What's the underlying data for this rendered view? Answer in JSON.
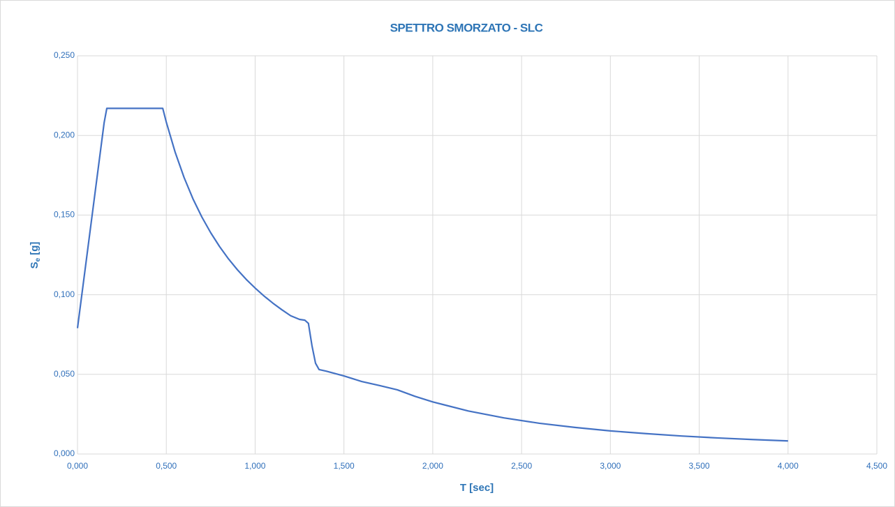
{
  "chart_data": {
    "type": "line",
    "title": "SPETTRO SMORZATO - SLC",
    "xlabel": "T [sec]",
    "ylabel": [
      "S",
      "e",
      "[g]"
    ],
    "grid": true,
    "xlim": [
      0,
      4.5
    ],
    "ylim": [
      0,
      0.25
    ],
    "xticks": [
      {
        "value": 0,
        "label": "0,000"
      },
      {
        "value": 0.5,
        "label": "0,500"
      },
      {
        "value": 1,
        "label": "1,000"
      },
      {
        "value": 1.5,
        "label": "1,500"
      },
      {
        "value": 2,
        "label": "2,000"
      },
      {
        "value": 2.5,
        "label": "2,500"
      },
      {
        "value": 3,
        "label": "3,000"
      },
      {
        "value": 3.5,
        "label": "3,500"
      },
      {
        "value": 4,
        "label": "4,000"
      },
      {
        "value": 4.5,
        "label": "4,500"
      }
    ],
    "yticks": [
      {
        "value": 0,
        "label": "0,000"
      },
      {
        "value": 0.05,
        "label": "0,050"
      },
      {
        "value": 0.1,
        "label": "0,100"
      },
      {
        "value": 0.15,
        "label": "0,150"
      },
      {
        "value": 0.2,
        "label": "0,200"
      },
      {
        "value": 0.25,
        "label": "0,250"
      }
    ],
    "series": [
      {
        "color": "#4472c4",
        "x": [
          0,
          0.05,
          0.1,
          0.15,
          0.165,
          0.2,
          0.3,
          0.4,
          0.48,
          0.5,
          0.55,
          0.6,
          0.65,
          0.7,
          0.75,
          0.8,
          0.85,
          0.9,
          0.95,
          1.0,
          1.05,
          1.1,
          1.15,
          1.2,
          1.25,
          1.28,
          1.3,
          1.32,
          1.34,
          1.36,
          1.4,
          1.5,
          1.6,
          1.7,
          1.8,
          1.9,
          2.0,
          2.2,
          2.4,
          2.6,
          2.8,
          3.0,
          3.2,
          3.4,
          3.6,
          3.8,
          4.0
        ],
        "values": [
          0.079,
          0.122,
          0.165,
          0.208,
          0.217,
          0.217,
          0.217,
          0.217,
          0.217,
          0.2083,
          0.1894,
          0.1736,
          0.1602,
          0.1488,
          0.1389,
          0.1302,
          0.1225,
          0.1157,
          0.1096,
          0.1042,
          0.0992,
          0.0947,
          0.0906,
          0.0868,
          0.0845,
          0.084,
          0.082,
          0.068,
          0.057,
          0.053,
          0.052,
          0.049,
          0.0455,
          0.043,
          0.0403,
          0.0362,
          0.0327,
          0.027,
          0.0227,
          0.0193,
          0.0167,
          0.0145,
          0.0128,
          0.0113,
          0.0101,
          0.0091,
          0.0082
        ]
      }
    ]
  }
}
